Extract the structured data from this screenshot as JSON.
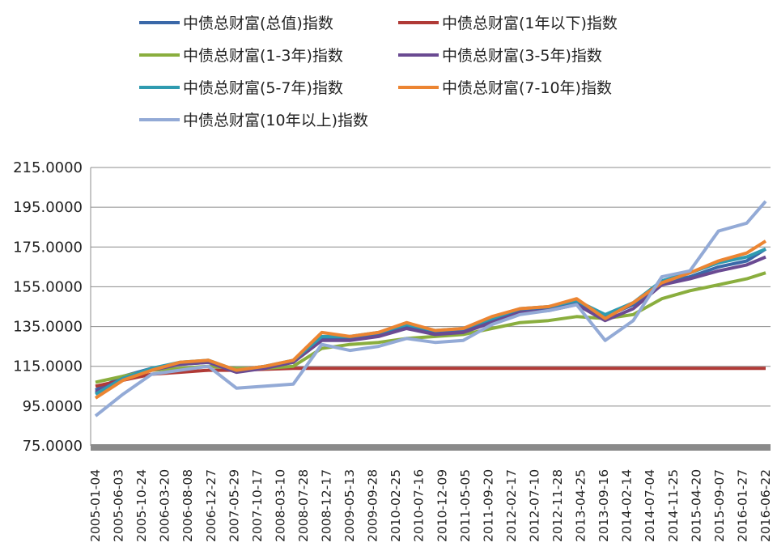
{
  "chart_data": {
    "type": "line",
    "title": "",
    "xlabel": "",
    "ylabel": "",
    "ylim": [
      75,
      215
    ],
    "yticks": [
      "75.0000",
      "95.0000",
      "115.0000",
      "135.0000",
      "155.0000",
      "175.0000",
      "195.0000",
      "215.0000"
    ],
    "grid": true,
    "legend_position": "top",
    "xtick_labels": [
      "2005-01-04",
      "2005-06-03",
      "2005-10-24",
      "2006-03-20",
      "2006-08-08",
      "2006-12-27",
      "2007-05-29",
      "2007-10-17",
      "2008-03-10",
      "2008-07-28",
      "2008-12-17",
      "2009-05-13",
      "2009-09-28",
      "2010-02-25",
      "2010-07-16",
      "2010-12-09",
      "2011-05-05",
      "2011-09-20",
      "2012-02-17",
      "2012-07-10",
      "2012-11-28",
      "2013-04-25",
      "2013-09-16",
      "2014-02-14",
      "2014-07-04",
      "2014-11-25",
      "2015-04-20",
      "2015-09-07",
      "2016-01-27",
      "2016-06-22"
    ],
    "x": [
      "2005-01-04",
      "2005-07-01",
      "2006-01-01",
      "2006-07-01",
      "2007-01-01",
      "2007-07-01",
      "2008-01-01",
      "2008-07-01",
      "2009-01-01",
      "2009-07-01",
      "2010-01-01",
      "2010-07-01",
      "2011-01-01",
      "2011-07-01",
      "2012-01-01",
      "2012-07-01",
      "2013-01-01",
      "2013-07-01",
      "2014-01-01",
      "2014-07-01",
      "2015-01-01",
      "2015-07-01",
      "2016-01-01",
      "2016-07-01",
      "2016-10-31"
    ],
    "series": [
      {
        "name": "中债总财富(总值)指数",
        "color": "#3a68a8",
        "values": [
          103,
          110,
          114,
          116,
          117,
          113,
          115,
          117,
          129,
          129,
          131,
          135,
          132,
          133,
          138,
          143,
          144,
          147,
          140,
          146,
          157,
          160,
          165,
          168,
          174
        ]
      },
      {
        "name": "中债总财富(1年以下)指数",
        "color": "#b03a36",
        "values": [
          105,
          108,
          111,
          112,
          113,
          113,
          113.5,
          114,
          114,
          114,
          114,
          114,
          114,
          114,
          114,
          114,
          114,
          114,
          114,
          114,
          114,
          114,
          114,
          114,
          114
        ]
      },
      {
        "name": "中债总财富(1-3年)指数",
        "color": "#8aae3e",
        "values": [
          107,
          110,
          113,
          114,
          115,
          114,
          114,
          115,
          124,
          126,
          127,
          129,
          130,
          131,
          134,
          137,
          138,
          140,
          139,
          141,
          149,
          153,
          156,
          159,
          162
        ]
      },
      {
        "name": "中债总财富(3-5年)指数",
        "color": "#6a4a92",
        "values": [
          102,
          109,
          113,
          116,
          117,
          112,
          114,
          117,
          128,
          128,
          130,
          134,
          131,
          132,
          137,
          142,
          143,
          146,
          138,
          144,
          156,
          159,
          163,
          166,
          170
        ]
      },
      {
        "name": "中债总财富(5-7年)指数",
        "color": "#2f9bb0",
        "values": [
          101,
          109,
          114,
          117,
          118,
          113,
          115,
          118,
          130,
          130,
          132,
          136,
          133,
          134,
          139,
          144,
          145,
          148,
          141,
          147,
          158,
          162,
          167,
          170,
          174
        ]
      },
      {
        "name": "中债总财富(7-10年)指数",
        "color": "#ec8532",
        "values": [
          99,
          108,
          113,
          117,
          118,
          113,
          115,
          118,
          132,
          130,
          132,
          137,
          133,
          134,
          140,
          144,
          145,
          149,
          139,
          147,
          157,
          162,
          168,
          172,
          178
        ]
      },
      {
        "name": "中债总财富(10年以上)指数",
        "color": "#93aad6",
        "values": [
          90,
          101,
          111,
          113,
          115,
          104,
          105,
          106,
          126,
          123,
          125,
          129,
          127,
          128,
          136,
          141,
          143,
          146,
          128,
          138,
          160,
          163,
          183,
          187,
          198
        ]
      }
    ]
  }
}
